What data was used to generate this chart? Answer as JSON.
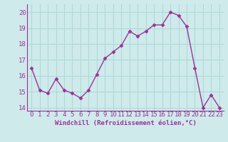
{
  "x": [
    0,
    1,
    2,
    3,
    4,
    5,
    6,
    7,
    8,
    9,
    10,
    11,
    12,
    13,
    14,
    15,
    16,
    17,
    18,
    19,
    20,
    21,
    22,
    23
  ],
  "y": [
    16.5,
    15.1,
    14.9,
    15.8,
    15.1,
    14.9,
    14.6,
    15.1,
    16.1,
    17.1,
    17.5,
    17.9,
    18.8,
    18.5,
    18.8,
    19.2,
    19.2,
    20.0,
    19.8,
    19.1,
    16.5,
    14.0,
    14.8,
    14.0
  ],
  "line_color": "#993399",
  "marker": "D",
  "marker_size": 2.5,
  "bg_color": "#ceeaea",
  "grid_color": "#b0d8d8",
  "xlabel": "Windchill (Refroidissement éolien,°C)",
  "xlim": [
    -0.5,
    23.5
  ],
  "ylim": [
    13.8,
    20.5
  ],
  "yticks": [
    14,
    15,
    16,
    17,
    18,
    19,
    20
  ],
  "xticks": [
    0,
    1,
    2,
    3,
    4,
    5,
    6,
    7,
    8,
    9,
    10,
    11,
    12,
    13,
    14,
    15,
    16,
    17,
    18,
    19,
    20,
    21,
    22,
    23
  ],
  "xlabel_fontsize": 6.5,
  "tick_fontsize": 6.5,
  "linewidth": 1.0
}
